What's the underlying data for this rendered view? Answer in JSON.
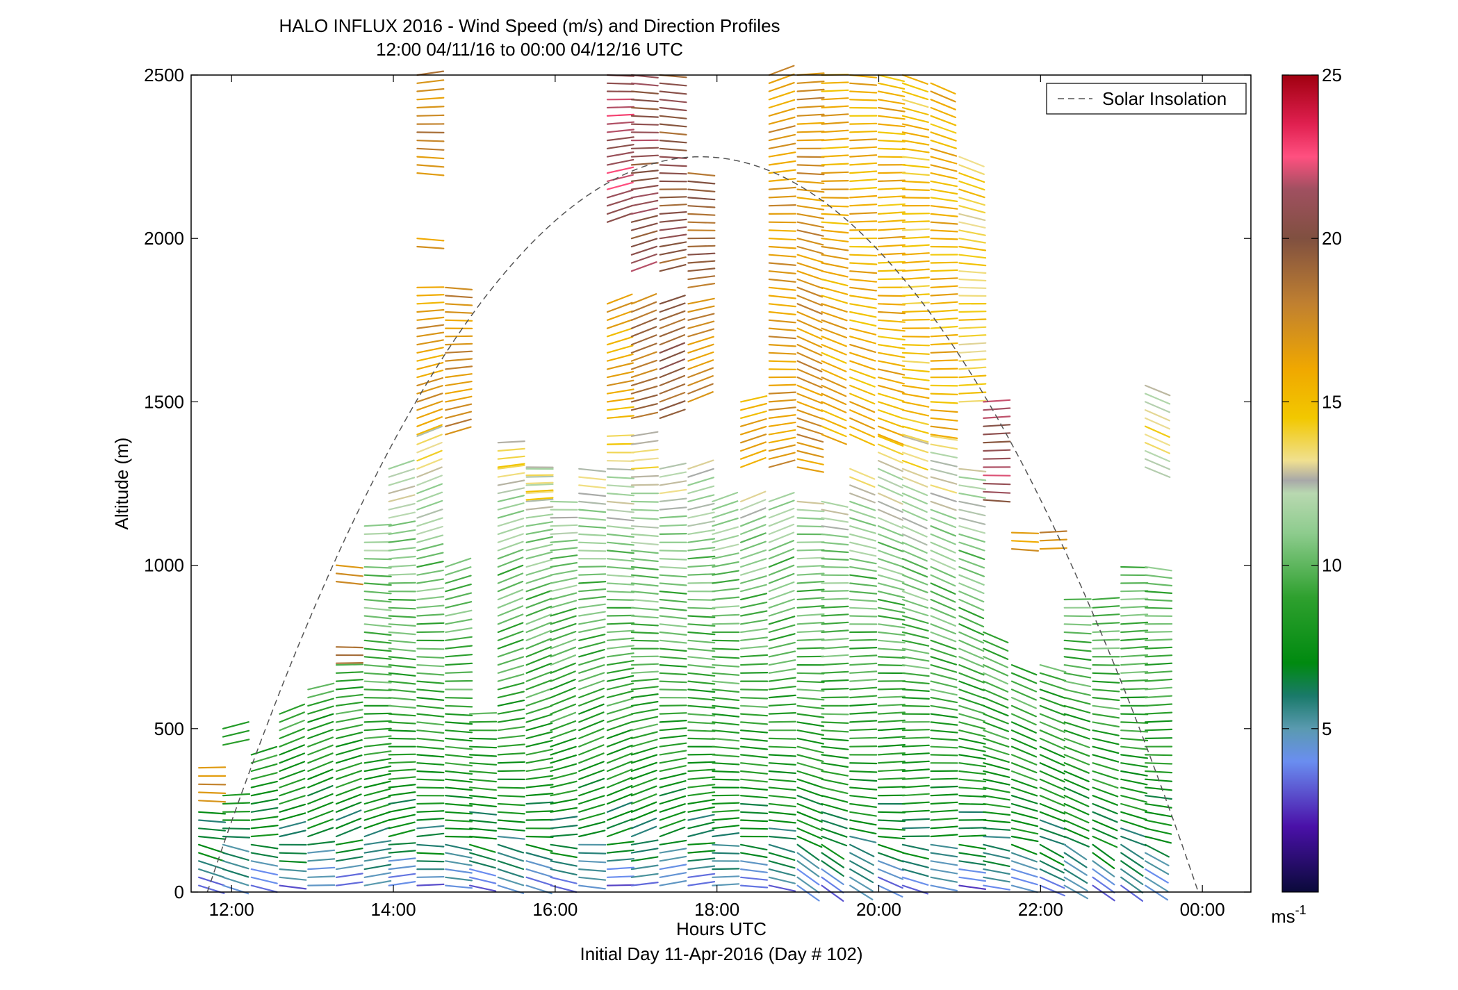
{
  "chart_data": {
    "type": "wind-barb-profile",
    "title": "HALO INFLUX 2016 - Wind Speed (m/s) and Direction Profiles",
    "subtitle": "12:00 04/11/16 to 00:00 04/12/16  UTC",
    "xlabel": "Hours UTC",
    "xlabel2": "Initial Day 11-Apr-2016 (Day # 102)",
    "ylabel": "Altitude (m)",
    "xlim_hours": [
      11.5,
      24.6
    ],
    "ylim": [
      0,
      2500
    ],
    "x_ticks": [
      {
        "hour": 12,
        "label": "12:00"
      },
      {
        "hour": 14,
        "label": "14:00"
      },
      {
        "hour": 16,
        "label": "16:00"
      },
      {
        "hour": 18,
        "label": "18:00"
      },
      {
        "hour": 20,
        "label": "20:00"
      },
      {
        "hour": 22,
        "label": "22:00"
      },
      {
        "hour": 24,
        "label": "00:00"
      }
    ],
    "y_ticks": [
      0,
      500,
      1000,
      1500,
      2000,
      2500
    ],
    "legend": {
      "label": "Solar Insolation",
      "placement": "top-right",
      "style": "dashed",
      "color": "#555555"
    },
    "solar_insolation": {
      "start_hour": 11.7,
      "end_hour": 23.95,
      "peak_altitude": 2250,
      "peak_hour": 17.8
    },
    "colorbar": {
      "unit_label": "ms",
      "unit_exponent": "-1",
      "range": [
        0,
        25
      ],
      "ticks": [
        5,
        10,
        15,
        20,
        25
      ],
      "stops": [
        {
          "v": 0,
          "c": "#0a0a3a"
        },
        {
          "v": 2,
          "c": "#4a10a8"
        },
        {
          "v": 4,
          "c": "#6a8ef0"
        },
        {
          "v": 5,
          "c": "#5a9ab0"
        },
        {
          "v": 6,
          "c": "#1a7a6a"
        },
        {
          "v": 7,
          "c": "#008a10"
        },
        {
          "v": 9,
          "c": "#2ea02e"
        },
        {
          "v": 11,
          "c": "#8ecc8e"
        },
        {
          "v": 12.2,
          "c": "#b8d8b0"
        },
        {
          "v": 12.6,
          "c": "#a8a8a8"
        },
        {
          "v": 13.2,
          "c": "#f0e090"
        },
        {
          "v": 14.5,
          "c": "#f2c800"
        },
        {
          "v": 16,
          "c": "#f0a800"
        },
        {
          "v": 18,
          "c": "#c08030"
        },
        {
          "v": 20,
          "c": "#805040"
        },
        {
          "v": 21.5,
          "c": "#a05060"
        },
        {
          "v": 22.5,
          "c": "#ff5080"
        },
        {
          "v": 23.5,
          "c": "#e02050"
        },
        {
          "v": 25,
          "c": "#a00010"
        }
      ]
    },
    "profile_hours": [
      11.75,
      12.05,
      12.4,
      12.75,
      13.1,
      13.45,
      13.8,
      14.1,
      14.45,
      14.8,
      15.1,
      15.45,
      15.8,
      16.1,
      16.45,
      16.8,
      17.1,
      17.45,
      17.8,
      18.1,
      18.45,
      18.8,
      19.15,
      19.45,
      19.8,
      20.15,
      20.45,
      20.8,
      21.15,
      21.45,
      21.8,
      22.15,
      22.45,
      22.8,
      23.15,
      23.45
    ],
    "profile_top_alt": [
      260,
      300,
      420,
      560,
      620,
      700,
      1130,
      1300,
      1400,
      1000,
      560,
      1300,
      1300,
      1200,
      1300,
      1400,
      1400,
      1300,
      1300,
      1200,
      1200,
      1200,
      1200,
      1200,
      1300,
      1400,
      1400,
      1400,
      1300,
      800,
      700,
      700,
      900,
      900,
      1000,
      1000
    ],
    "level_step_m": 25,
    "speed_model": [
      {
        "alt": 0,
        "speed": 3.5
      },
      {
        "alt": 50,
        "speed": 4.5
      },
      {
        "alt": 120,
        "speed": 6.2
      },
      {
        "alt": 300,
        "speed": 7.8
      },
      {
        "alt": 700,
        "speed": 9.5
      },
      {
        "alt": 1000,
        "speed": 10.5
      },
      {
        "alt": 1300,
        "speed": 12.8
      },
      {
        "alt": 1600,
        "speed": 15.5
      },
      {
        "alt": 2000,
        "speed": 17.2
      },
      {
        "alt": 2500,
        "speed": 19.5
      }
    ],
    "upper_segments": [
      {
        "hour": 11.75,
        "alt_min": 280,
        "alt_max": 380,
        "speed": 16.5
      },
      {
        "hour": 12.05,
        "alt_min": 450,
        "alt_max": 500,
        "speed": 8
      },
      {
        "hour": 13.45,
        "alt_min": 700,
        "alt_max": 760,
        "speed": 18
      },
      {
        "hour": 13.45,
        "alt_min": 950,
        "alt_max": 1000,
        "speed": 17
      },
      {
        "hour": 14.45,
        "alt_min": 1400,
        "alt_max": 1850,
        "speed": 16.5
      },
      {
        "hour": 14.8,
        "alt_min": 1400,
        "alt_max": 1850,
        "speed": 17
      },
      {
        "hour": 14.45,
        "alt_min": 2200,
        "alt_max": 2500,
        "speed": 17.5
      },
      {
        "hour": 14.45,
        "alt_min": 1975,
        "alt_max": 2000,
        "speed": 17
      },
      {
        "hour": 15.45,
        "alt_min": 1300,
        "alt_max": 1380,
        "speed": 14
      },
      {
        "hour": 15.8,
        "alt_min": 1200,
        "alt_max": 1300,
        "speed": 14
      },
      {
        "hour": 16.8,
        "alt_min": 1450,
        "alt_max": 1800,
        "speed": 16
      },
      {
        "hour": 17.1,
        "alt_min": 1450,
        "alt_max": 1800,
        "speed": 18.5
      },
      {
        "hour": 17.45,
        "alt_min": 1450,
        "alt_max": 1800,
        "speed": 19.5
      },
      {
        "hour": 17.8,
        "alt_min": 1500,
        "alt_max": 1800,
        "speed": 17
      },
      {
        "hour": 16.8,
        "alt_min": 2050,
        "alt_max": 2500,
        "speed": 21.5
      },
      {
        "hour": 17.1,
        "alt_min": 1900,
        "alt_max": 2500,
        "speed": 20.5
      },
      {
        "hour": 17.45,
        "alt_min": 1900,
        "alt_max": 2500,
        "speed": 20
      },
      {
        "hour": 17.8,
        "alt_min": 1850,
        "alt_max": 2200,
        "speed": 19
      },
      {
        "hour": 18.45,
        "alt_min": 1300,
        "alt_max": 1500,
        "speed": 16
      },
      {
        "hour": 18.8,
        "alt_min": 1300,
        "alt_max": 2500,
        "speed": 16.5
      },
      {
        "hour": 19.15,
        "alt_min": 1300,
        "alt_max": 2500,
        "speed": 17
      },
      {
        "hour": 19.45,
        "alt_min": 1400,
        "alt_max": 2500,
        "speed": 16
      },
      {
        "hour": 19.8,
        "alt_min": 1400,
        "alt_max": 2500,
        "speed": 15.5
      },
      {
        "hour": 20.15,
        "alt_min": 1400,
        "alt_max": 2500,
        "speed": 15.5
      },
      {
        "hour": 20.45,
        "alt_min": 1400,
        "alt_max": 2500,
        "speed": 15
      },
      {
        "hour": 20.8,
        "alt_min": 1400,
        "alt_max": 2480,
        "speed": 15.5
      },
      {
        "hour": 21.15,
        "alt_min": 1500,
        "alt_max": 2250,
        "speed": 14
      },
      {
        "hour": 21.45,
        "alt_min": 1200,
        "alt_max": 1500,
        "speed": 21
      },
      {
        "hour": 21.8,
        "alt_min": 1050,
        "alt_max": 1100,
        "speed": 17
      },
      {
        "hour": 22.15,
        "alt_min": 1050,
        "alt_max": 1100,
        "speed": 17
      },
      {
        "hour": 23.45,
        "alt_min": 1300,
        "alt_max": 1550,
        "speed": 13
      }
    ]
  }
}
